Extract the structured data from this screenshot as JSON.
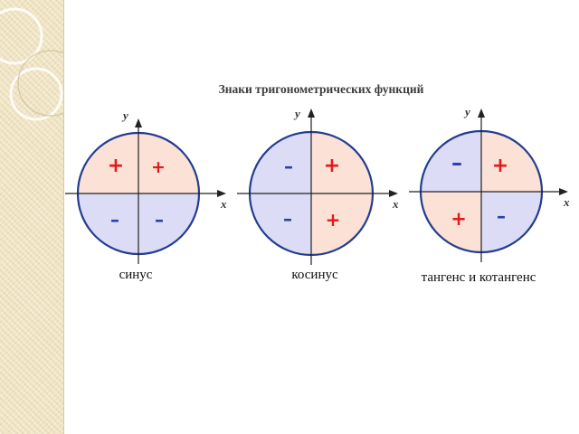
{
  "title": "Знаки тригонометрических функций",
  "axis": {
    "x_label": "x",
    "y_label": "y"
  },
  "colors": {
    "positive_fill": "#fbe1d6",
    "negative_fill": "#dcdcf7",
    "circle_stroke": "#243d8f",
    "plus_color": "#e01a1a",
    "minus_color": "#2b40a8"
  },
  "functions": [
    {
      "name": "синус",
      "quadrants": {
        "q1": {
          "sign": "+",
          "positive": true
        },
        "q2": {
          "sign": "+",
          "positive": true
        },
        "q3": {
          "sign": "–",
          "positive": false
        },
        "q4": {
          "sign": "–",
          "positive": false
        }
      }
    },
    {
      "name": "косинус",
      "quadrants": {
        "q1": {
          "sign": "+",
          "positive": true
        },
        "q2": {
          "sign": "–",
          "positive": false
        },
        "q3": {
          "sign": "–",
          "positive": false
        },
        "q4": {
          "sign": "+",
          "positive": true
        }
      }
    },
    {
      "name": "тангенс и котангенс",
      "quadrants": {
        "q1": {
          "sign": "+",
          "positive": true
        },
        "q2": {
          "sign": "–",
          "positive": false
        },
        "q3": {
          "sign": "+",
          "positive": true
        },
        "q4": {
          "sign": "–",
          "positive": false
        }
      }
    }
  ]
}
